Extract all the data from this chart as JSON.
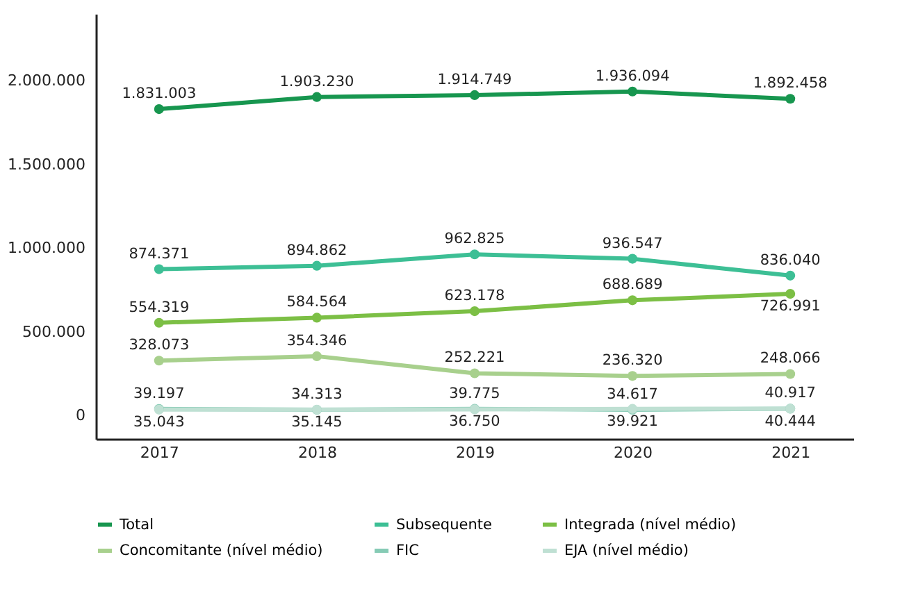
{
  "chart_data": {
    "type": "line",
    "categories": [
      "2017",
      "2018",
      "2019",
      "2020",
      "2021"
    ],
    "series": [
      {
        "name": "Total",
        "color": "#17964f",
        "values": [
          1831003,
          1903230,
          1914749,
          1936094,
          1892458
        ],
        "value_labels": [
          "1.831.003",
          "1.903.230",
          "1.914.749",
          "1.936.094",
          "1.892.458"
        ]
      },
      {
        "name": "Subsequente",
        "color": "#3dbf95",
        "values": [
          874371,
          894862,
          962825,
          936547,
          836040
        ],
        "value_labels": [
          "874.371",
          "894.862",
          "962.825",
          "936.547",
          "836.040"
        ]
      },
      {
        "name": "Integrada (nível médio)",
        "color": "#7cbf45",
        "values": [
          554319,
          584564,
          623178,
          688689,
          726991
        ],
        "value_labels": [
          "554.319",
          "584.564",
          "623.178",
          "688.689",
          "726.991"
        ]
      },
      {
        "name": "Concomitante (nível médio)",
        "color": "#a8d08d",
        "values": [
          328073,
          354346,
          252221,
          236320,
          248066
        ],
        "value_labels": [
          "328.073",
          "354.346",
          "252.221",
          "236.320",
          "248.066"
        ]
      },
      {
        "name": "FIC",
        "color": "#86cbb5",
        "values": [
          39197,
          34313,
          39775,
          34617,
          40917
        ],
        "value_labels": [
          "39.197",
          "34.313",
          "39.775",
          "34.617",
          "40.917"
        ]
      },
      {
        "name": "EJA (nível médio)",
        "color": "#bfe0d3",
        "values": [
          35043,
          35145,
          36750,
          39921,
          40444
        ],
        "value_labels": [
          "35.043",
          "35.145",
          "36.750",
          "39.921",
          "40.444"
        ]
      }
    ],
    "ylim": [
      -140000,
      2400000
    ],
    "yticks": [
      {
        "value": 0,
        "label": "0"
      },
      {
        "value": 500000,
        "label": "500.000"
      },
      {
        "value": 1000000,
        "label": "1.000.000"
      },
      {
        "value": 1500000,
        "label": "1.500.000"
      },
      {
        "value": 2000000,
        "label": "2.000.000"
      }
    ],
    "legend": "bottom",
    "marker": "circle",
    "line_style": "solid",
    "grid": false
  }
}
